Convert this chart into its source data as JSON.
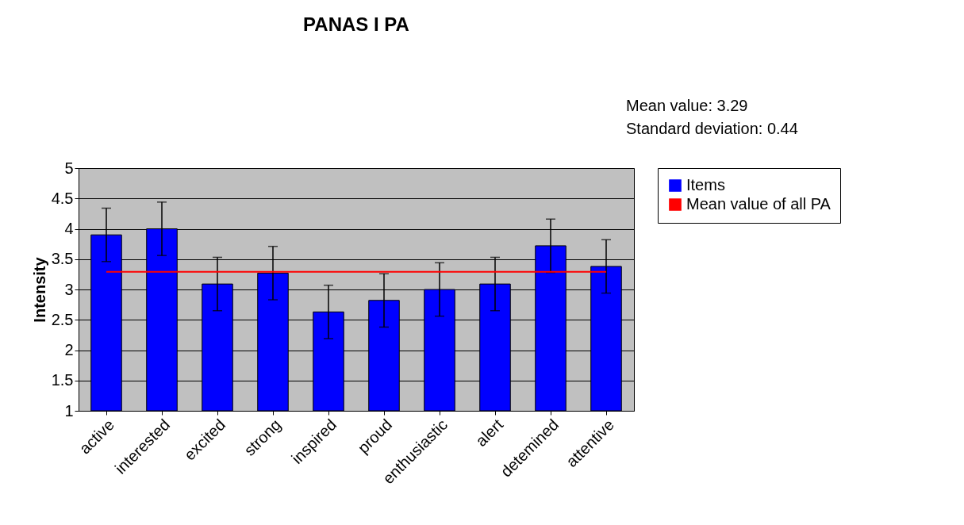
{
  "chart_data": {
    "type": "bar",
    "title": "PANAS I PA",
    "ylabel": "Intensity",
    "categories": [
      "active",
      "interested",
      "excited",
      "strong",
      "inspired",
      "proud",
      "enthusiastic",
      "alert",
      "detemined",
      "attentive"
    ],
    "series": [
      {
        "name": "Items",
        "type": "bar",
        "color": "#0000ff",
        "values": [
          3.9,
          4.0,
          3.09,
          3.27,
          2.63,
          2.82,
          3.0,
          3.09,
          3.72,
          3.38
        ],
        "errors": [
          0.44,
          0.44,
          0.44,
          0.44,
          0.44,
          0.44,
          0.44,
          0.44,
          0.44,
          0.44
        ]
      },
      {
        "name": "Mean value of all PA",
        "type": "line",
        "color": "#ff0000",
        "values": [
          3.29,
          3.29,
          3.29,
          3.29,
          3.29,
          3.29,
          3.29,
          3.29,
          3.29,
          3.29
        ]
      }
    ],
    "annotations": [
      "Mean value: 3.29",
      "Standard deviation: 0.44"
    ],
    "ylim": [
      1,
      5
    ],
    "yticks": [
      1,
      1.5,
      2,
      2.5,
      3,
      3.5,
      4,
      4.5,
      5
    ],
    "grid": "y",
    "legend": "right"
  }
}
